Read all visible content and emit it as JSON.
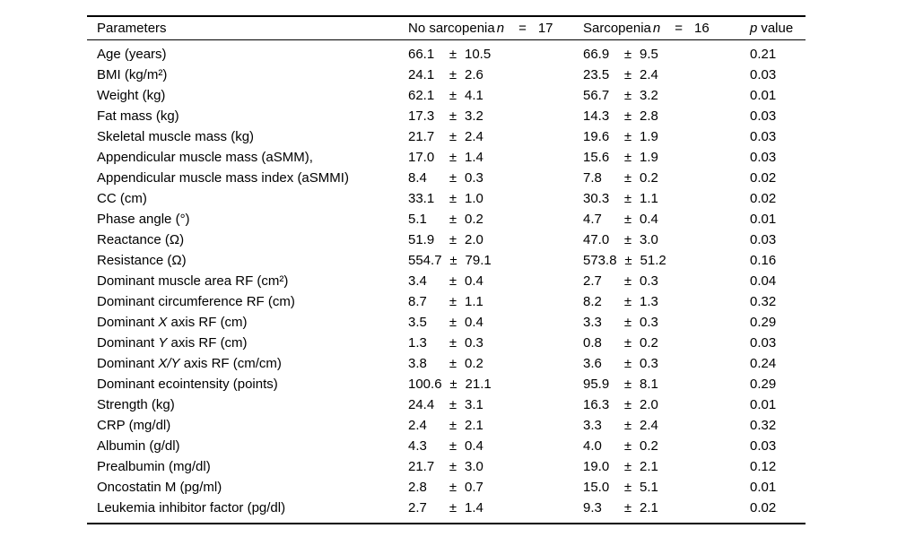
{
  "page": {
    "background": "#ffffff",
    "text_color": "#000000",
    "rule_color": "#000000"
  },
  "table": {
    "pm": "±",
    "headers": {
      "param": "Parameters",
      "group1": {
        "label": "No sarcopenia",
        "n": "n",
        "eq": "=",
        "count": "17"
      },
      "group2": {
        "label": "Sarcopenia",
        "n": "n",
        "eq": "=",
        "count": "16"
      },
      "p": {
        "symbol": "p",
        "rest": "value"
      }
    },
    "rows": [
      {
        "param": "Age (years)",
        "m1": "66.1",
        "s1": "10.5",
        "m2": "66.9",
        "s2": "9.5",
        "p": "0.21"
      },
      {
        "param": "BMI (kg/m²)",
        "m1": "24.1",
        "s1": "2.6",
        "m2": "23.5",
        "s2": "2.4",
        "p": "0.03"
      },
      {
        "param": "Weight (kg)",
        "m1": "62.1",
        "s1": "4.1",
        "m2": "56.7",
        "s2": "3.2",
        "p": "0.01"
      },
      {
        "param": "Fat mass (kg)",
        "m1": "17.3",
        "s1": "3.2",
        "m2": "14.3",
        "s2": "2.8",
        "p": "0.03"
      },
      {
        "param": "Skeletal muscle mass (kg)",
        "m1": "21.7",
        "s1": "2.4",
        "m2": "19.6",
        "s2": "1.9",
        "p": "0.03"
      },
      {
        "param": "Appendicular muscle mass (aSMM),",
        "m1": "17.0",
        "s1": "1.4",
        "m2": "15.6",
        "s2": "1.9",
        "p": "0.03"
      },
      {
        "param": "Appendicular muscle mass index (aSMMI)",
        "m1": "8.4",
        "s1": "0.3",
        "m2": "7.8",
        "s2": "0.2",
        "p": "0.02"
      },
      {
        "param": "CC (cm)",
        "m1": "33.1",
        "s1": "1.0",
        "m2": "30.3",
        "s2": "1.1",
        "p": "0.02"
      },
      {
        "param": "Phase angle (°)",
        "m1": "5.1",
        "s1": "0.2",
        "m2": "4.7",
        "s2": "0.4",
        "p": "0.01"
      },
      {
        "param": "Reactance (Ω)",
        "m1": "51.9",
        "s1": "2.0",
        "m2": "47.0",
        "s2": "3.0",
        "p": "0.03"
      },
      {
        "param": "Resistance (Ω)",
        "m1": "554.7",
        "s1": "79.1",
        "m2": "573.8",
        "s2": "51.2",
        "p": "0.16"
      },
      {
        "param": "Dominant muscle area RF (cm²)",
        "m1": "3.4",
        "s1": "0.4",
        "m2": "2.7",
        "s2": "0.3",
        "p": "0.04"
      },
      {
        "param": "Dominant circumference RF (cm)",
        "m1": "8.7",
        "s1": "1.1",
        "m2": "8.2",
        "s2": "1.3",
        "p": "0.32"
      },
      {
        "param": [
          "Dominant ",
          {
            "i": "X"
          },
          " axis RF (cm)"
        ],
        "m1": "3.5",
        "s1": "0.4",
        "m2": "3.3",
        "s2": "0.3",
        "p": "0.29"
      },
      {
        "param": [
          "Dominant ",
          {
            "i": "Y"
          },
          " axis RF (cm)"
        ],
        "m1": "1.3",
        "s1": "0.3",
        "m2": "0.8",
        "s2": "0.2",
        "p": "0.03"
      },
      {
        "param": [
          "Dominant ",
          {
            "i": "X/Y"
          },
          " axis RF (cm/cm)"
        ],
        "m1": "3.8",
        "s1": "0.2",
        "m2": "3.6",
        "s2": "0.3",
        "p": "0.24"
      },
      {
        "param": "Dominant ecointensity (points)",
        "m1": "100.6",
        "s1": "21.1",
        "m2": "95.9",
        "s2": "8.1",
        "p": "0.29"
      },
      {
        "param": "Strength (kg)",
        "m1": "24.4",
        "s1": "3.1",
        "m2": "16.3",
        "s2": "2.0",
        "p": "0.01"
      },
      {
        "param": "CRP (mg/dl)",
        "m1": "2.4",
        "s1": "2.1",
        "m2": "3.3",
        "s2": "2.4",
        "p": "0.32"
      },
      {
        "param": "Albumin (g/dl)",
        "m1": "4.3",
        "s1": "0.4",
        "m2": "4.0",
        "s2": "0.2",
        "p": "0.03"
      },
      {
        "param": "Prealbumin (mg/dl)",
        "m1": "21.7",
        "s1": "3.0",
        "m2": "19.0",
        "s2": "2.1",
        "p": "0.12"
      },
      {
        "param": "Oncostatin M (pg/ml)",
        "m1": "2.8",
        "s1": "0.7",
        "m2": "15.0",
        "s2": "5.1",
        "p": "0.01"
      },
      {
        "param": "Leukemia inhibitor factor (pg/dl)",
        "m1": "2.7",
        "s1": "1.4",
        "m2": "9.3",
        "s2": "2.1",
        "p": "0.02"
      }
    ]
  }
}
